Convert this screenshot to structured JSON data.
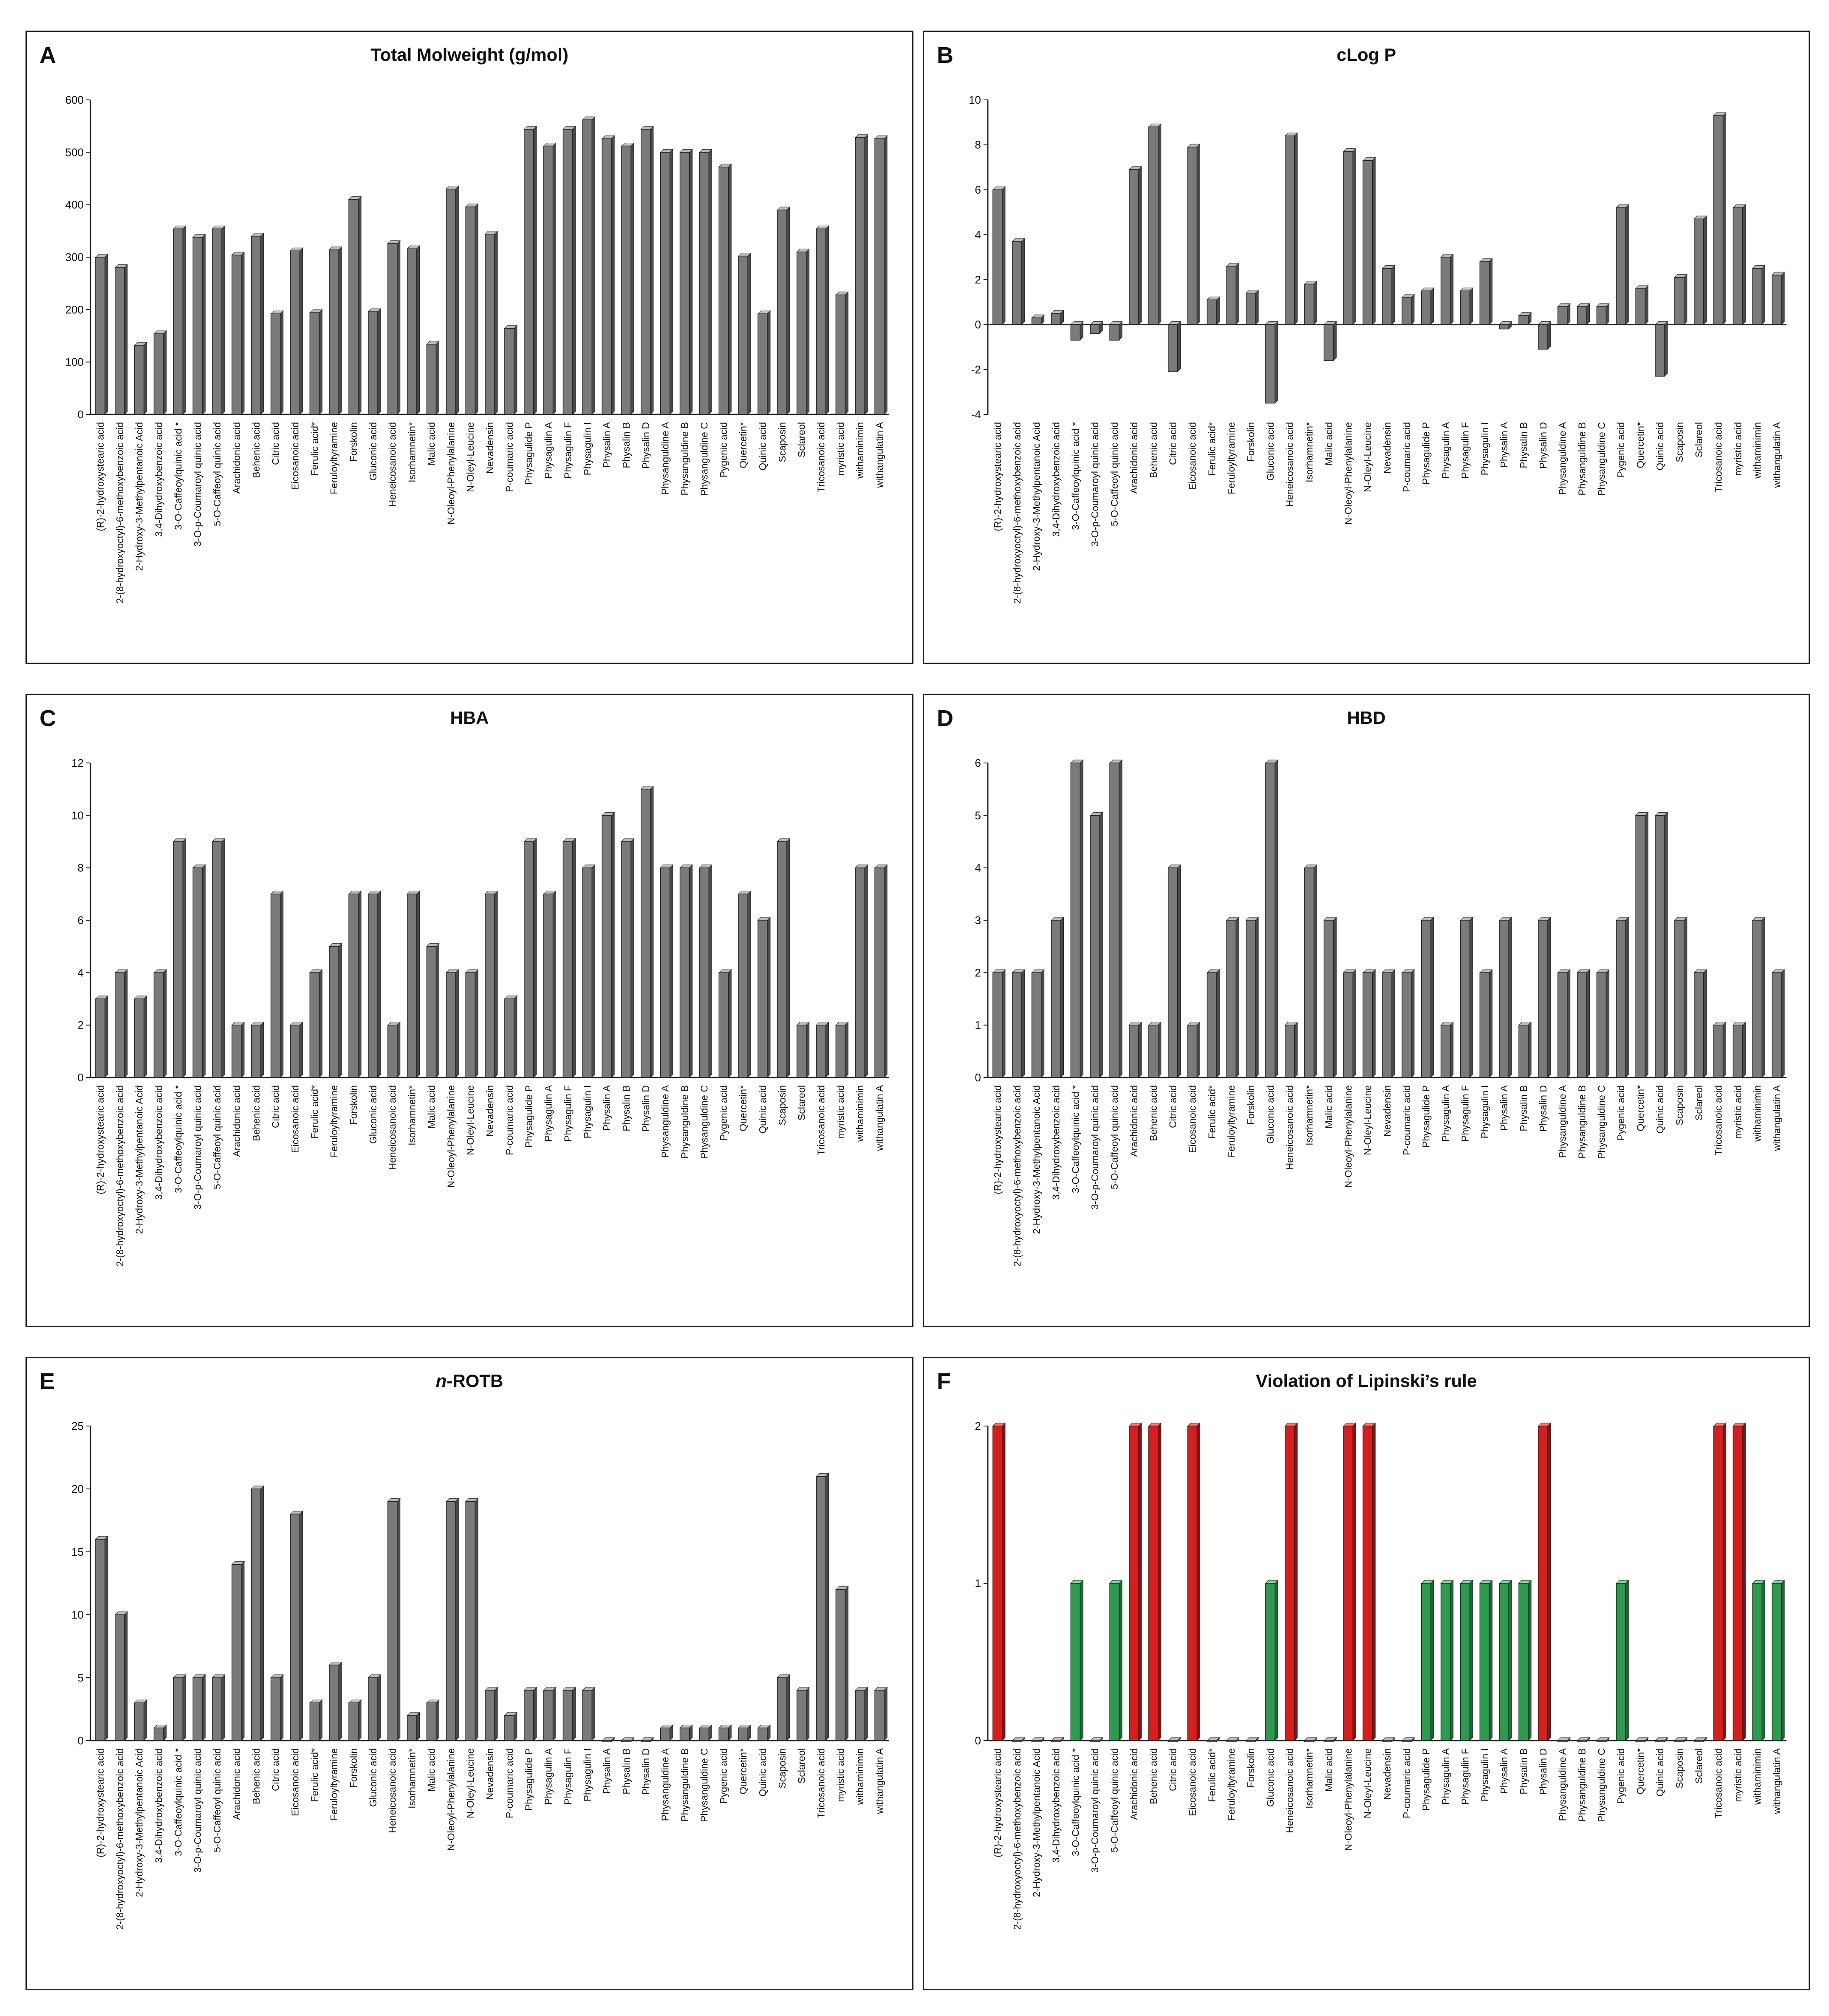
{
  "colors": {
    "bar": "#7a7a7a",
    "bar_side": "#4a4a4a",
    "bar_top": "#bdbdbd",
    "red": "#d41f1f",
    "red_side": "#8c1010",
    "red_top": "#f07a7a",
    "green": "#2e9a4f",
    "green_side": "#1c6a33",
    "green_top": "#85d39b"
  },
  "chart_data": [
    {
      "panel": "A",
      "type": "bar",
      "title": "Total Molweight (g/mol)",
      "ylim": [
        0,
        600
      ],
      "yticks": [
        0,
        100,
        200,
        300,
        400,
        500,
        600
      ],
      "categories": [
        "(R)-2-hydroxystearic acid",
        "2-(8-hydroxyoctyl)-6-methoxybenzoic acid",
        "2-Hydroxy-3-Methylpentanoic Acid",
        "3,4-Dihydroxybenzoic acid",
        "3-O-Caffeoylquinic acid *",
        "3-O-p-Coumaroyl quinic acid",
        "5-O-Caffeoyl quinic acid",
        "Arachidonic acid",
        "Behenic acid",
        "Citric acid",
        "Eicosanoic acid",
        "Ferulic acid*",
        "Feruloyltyramine",
        "Forskolin",
        "Gluconic acid",
        "Heneicosanoic acid",
        "Isorhamnetin*",
        "Malic acid",
        "N-Oleoyl-Phenylalanine",
        "N-Oleyl-Leucine",
        "Nevadensin",
        "P-coumaric acid",
        "Physagulide P",
        "Physagulin A",
        "Physagulin F",
        "Physagulin I",
        "Physalin A",
        "Physalin B",
        "Physalin D",
        "Physanguldine A",
        "Physanguldine B",
        "Physanguldine C",
        "Pygenic acid",
        "Quercetin*",
        "Quinic acid",
        "Scaposin",
        "Sclareol",
        "Tricosanoic acid",
        "myristic acid",
        "withaminimin",
        "withangulatin A"
      ],
      "values": [
        300,
        280,
        132,
        154,
        354,
        338,
        354,
        304,
        340,
        192,
        312,
        194,
        314,
        410,
        196,
        326,
        316,
        134,
        430,
        396,
        344,
        164,
        544,
        512,
        544,
        562,
        526,
        512,
        544,
        500,
        500,
        500,
        472,
        302,
        192,
        390,
        310,
        354,
        228,
        528,
        526
      ]
    },
    {
      "panel": "B",
      "type": "bar",
      "title": "cLog P",
      "ylim": [
        -4,
        10
      ],
      "yticks": [
        -4,
        -2,
        0,
        2,
        4,
        6,
        8,
        10
      ],
      "categories": [
        "(R)-2-hydroxystearic acid",
        "2-(8-hydroxyoctyl)-6-methoxybenzoic acid",
        "2-Hydroxy-3-Methylpentanoic Acid",
        "3,4-Dihydroxybenzoic acid",
        "3-O-Caffeoylquinic acid *",
        "3-O-p-Coumaroyl quinic acid",
        "5-O-Caffeoyl quinic acid",
        "Arachidonic acid",
        "Behenic acid",
        "Citric acid",
        "Eicosanoic acid",
        "Ferulic acid*",
        "Feruloyltyramine",
        "Forskolin",
        "Gluconic acid",
        "Heneicosanoic acid",
        "Isorhamnetin*",
        "Malic acid",
        "N-Oleoyl-Phenylalanine",
        "N-Oleyl-Leucine",
        "Nevadensin",
        "P-coumaric acid",
        "Physagulide P",
        "Physagulin A",
        "Physagulin F",
        "Physagulin I",
        "Physalin A",
        "Physalin B",
        "Physalin D",
        "Physanguldine A",
        "Physanguldine B",
        "Physanguldine C",
        "Pygenic acid",
        "Quercetin*",
        "Quinic acid",
        "Scaposin",
        "Sclareol",
        "Tricosanoic acid",
        "myristic acid",
        "withaminimin",
        "withangulatin A"
      ],
      "values": [
        6.0,
        3.7,
        0.3,
        0.5,
        -0.7,
        -0.4,
        -0.7,
        6.9,
        8.8,
        -2.1,
        7.9,
        1.1,
        2.6,
        1.4,
        -3.5,
        8.4,
        1.8,
        -1.6,
        7.7,
        7.3,
        2.5,
        1.2,
        1.5,
        3.0,
        1.5,
        2.8,
        -0.2,
        0.4,
        -1.1,
        0.8,
        0.8,
        0.8,
        5.2,
        1.6,
        -2.3,
        2.1,
        4.7,
        9.3,
        5.2,
        2.5,
        2.2
      ]
    },
    {
      "panel": "C",
      "type": "bar",
      "title": "HBA",
      "ylim": [
        0,
        12
      ],
      "yticks": [
        0,
        2,
        4,
        6,
        8,
        10,
        12
      ],
      "categories": [
        "(R)-2-hydroxystearic acid",
        "2-(8-hydroxyoctyl)-6-methoxybenzoic acid",
        "2-Hydroxy-3-Methylpentanoic Acid",
        "3,4-Dihydroxybenzoic acid",
        "3-O-Caffeoylquinic acid *",
        "3-O-p-Coumaroyl quinic acid",
        "5-O-Caffeoyl quinic acid",
        "Arachidonic acid",
        "Behenic acid",
        "Citric acid",
        "Eicosanoic acid",
        "Ferulic acid*",
        "Feruloyltyramine",
        "Forskolin",
        "Gluconic acid",
        "Heneicosanoic acid",
        "Isorhamnetin*",
        "Malic acid",
        "N-Oleoyl-Phenylalanine",
        "N-Oleyl-Leucine",
        "Nevadensin",
        "P-coumaric acid",
        "Physagulide P",
        "Physagulin A",
        "Physagulin F",
        "Physagulin I",
        "Physalin A",
        "Physalin B",
        "Physalin D",
        "Physanguldine A",
        "Physanguldine B",
        "Physanguldine C",
        "Pygenic acid",
        "Quercetin*",
        "Quinic acid",
        "Scaposin",
        "Sclareol",
        "Tricosanoic acid",
        "myristic acid",
        "withaminimin",
        "withangulatin A"
      ],
      "values": [
        3,
        4,
        3,
        4,
        9,
        8,
        9,
        2,
        2,
        7,
        2,
        4,
        5,
        7,
        7,
        2,
        7,
        5,
        4,
        4,
        7,
        3,
        9,
        7,
        9,
        8,
        10,
        9,
        11,
        8,
        8,
        8,
        4,
        7,
        6,
        9,
        2,
        2,
        2,
        8,
        8
      ]
    },
    {
      "panel": "D",
      "type": "bar",
      "title": "HBD",
      "ylim": [
        0,
        6
      ],
      "yticks": [
        0,
        1,
        2,
        3,
        4,
        5,
        6
      ],
      "categories": [
        "(R)-2-hydroxystearic acid",
        "2-(8-hydroxyoctyl)-6-methoxybenzoic acid",
        "2-Hydroxy-3-Methylpentanoic Acid",
        "3,4-Dihydroxybenzoic acid",
        "3-O-Caffeoylquinic acid *",
        "3-O-p-Coumaroyl quinic acid",
        "5-O-Caffeoyl quinic acid",
        "Arachidonic acid",
        "Behenic acid",
        "Citric acid",
        "Eicosanoic acid",
        "Ferulic acid*",
        "Feruloyltyramine",
        "Forskolin",
        "Gluconic acid",
        "Heneicosanoic acid",
        "Isorhamnetin*",
        "Malic acid",
        "N-Oleoyl-Phenylalanine",
        "N-Oleyl-Leucine",
        "Nevadensin",
        "P-coumaric acid",
        "Physagulide P",
        "Physagulin A",
        "Physagulin F",
        "Physagulin I",
        "Physalin A",
        "Physalin B",
        "Physalin D",
        "Physanguldine A",
        "Physanguldine B",
        "Physanguldine C",
        "Pygenic acid",
        "Quercetin*",
        "Quinic acid",
        "Scaposin",
        "Sclareol",
        "Tricosanoic acid",
        "myristic acid",
        "withaminimin",
        "withangulatin A"
      ],
      "values": [
        2,
        2,
        2,
        3,
        6,
        5,
        6,
        1,
        1,
        4,
        1,
        2,
        3,
        3,
        6,
        1,
        4,
        3,
        2,
        2,
        2,
        2,
        3,
        1,
        3,
        2,
        3,
        1,
        3,
        2,
        2,
        2,
        3,
        5,
        5,
        3,
        2,
        1,
        1,
        3,
        2
      ]
    },
    {
      "panel": "E",
      "type": "bar",
      "title_prefix": "n",
      "title_suffix": "-ROTB",
      "ylim": [
        0,
        25
      ],
      "yticks": [
        0,
        5,
        10,
        15,
        20,
        25
      ],
      "categories": [
        "(R)-2-hydroxystearic acid",
        "2-(8-hydroxyoctyl)-6-methoxybenzoic acid",
        "2-Hydroxy-3-Methylpentanoic Acid",
        "3,4-Dihydroxybenzoic acid",
        "3-O-Caffeoylquinic acid *",
        "3-O-p-Coumaroyl quinic acid",
        "5-O-Caffeoyl quinic acid",
        "Arachidonic acid",
        "Behenic acid",
        "Citric acid",
        "Eicosanoic acid",
        "Ferulic acid*",
        "Feruloyltyramine",
        "Forskolin",
        "Gluconic acid",
        "Heneicosanoic acid",
        "Isorhamnetin*",
        "Malic acid",
        "N-Oleoyl-Phenylalanine",
        "N-Oleyl-Leucine",
        "Nevadensin",
        "P-coumaric acid",
        "Physagulide P",
        "Physagulin A",
        "Physagulin F",
        "Physagulin I",
        "Physalin A",
        "Physalin B",
        "Physalin D",
        "Physanguldine A",
        "Physanguldine B",
        "Physanguldine C",
        "Pygenic acid",
        "Quercetin*",
        "Quinic acid",
        "Scaposin",
        "Sclareol",
        "Tricosanoic acid",
        "myristic acid",
        "withaminimin",
        "withangulatin A"
      ],
      "values": [
        16,
        10,
        3,
        1,
        5,
        5,
        5,
        14,
        20,
        5,
        18,
        3,
        6,
        3,
        5,
        19,
        2,
        3,
        19,
        19,
        4,
        2,
        4,
        4,
        4,
        4,
        0,
        0,
        0,
        1,
        1,
        1,
        1,
        1,
        1,
        5,
        4,
        21,
        12,
        4,
        4
      ]
    },
    {
      "panel": "F",
      "type": "bar",
      "title": "Violation of Lipinski’s rule",
      "ylim": [
        0,
        2
      ],
      "yticks": [
        0,
        1,
        2
      ],
      "categories": [
        "(R)-2-hydroxystearic acid",
        "2-(8-hydroxyoctyl)-6-methoxybenzoic acid",
        "2-Hydroxy-3-Methylpentanoic Acid",
        "3,4-Dihydroxybenzoic acid",
        "3-O-Caffeoylquinic acid *",
        "3-O-p-Coumaroyl quinic acid",
        "5-O-Caffeoyl quinic acid",
        "Arachidonic acid",
        "Behenic acid",
        "Citric acid",
        "Eicosanoic acid",
        "Ferulic acid*",
        "Feruloyltyramine",
        "Forskolin",
        "Gluconic acid",
        "Heneicosanoic acid",
        "Isorhamnetin*",
        "Malic acid",
        "N-Oleoyl-Phenylalanine",
        "N-Oleyl-Leucine",
        "Nevadensin",
        "P-coumaric acid",
        "Physagulide P",
        "Physagulin A",
        "Physagulin F",
        "Physagulin I",
        "Physalin A",
        "Physalin B",
        "Physalin D",
        "Physanguldine A",
        "Physanguldine B",
        "Physanguldine C",
        "Pygenic acid",
        "Quercetin*",
        "Quinic acid",
        "Scaposin",
        "Sclareol",
        "Tricosanoic acid",
        "myristic acid",
        "withaminimin",
        "withangulatin A"
      ],
      "values": [
        2,
        0,
        0,
        0,
        1,
        0,
        1,
        2,
        2,
        0,
        2,
        0,
        0,
        0,
        1,
        2,
        0,
        0,
        2,
        2,
        0,
        0,
        1,
        1,
        1,
        1,
        1,
        1,
        2,
        0,
        0,
        0,
        1,
        0,
        0,
        0,
        0,
        2,
        2,
        1,
        1
      ],
      "color_rule": "value 2 = red, value 1 = green, value 0 = gray"
    }
  ]
}
